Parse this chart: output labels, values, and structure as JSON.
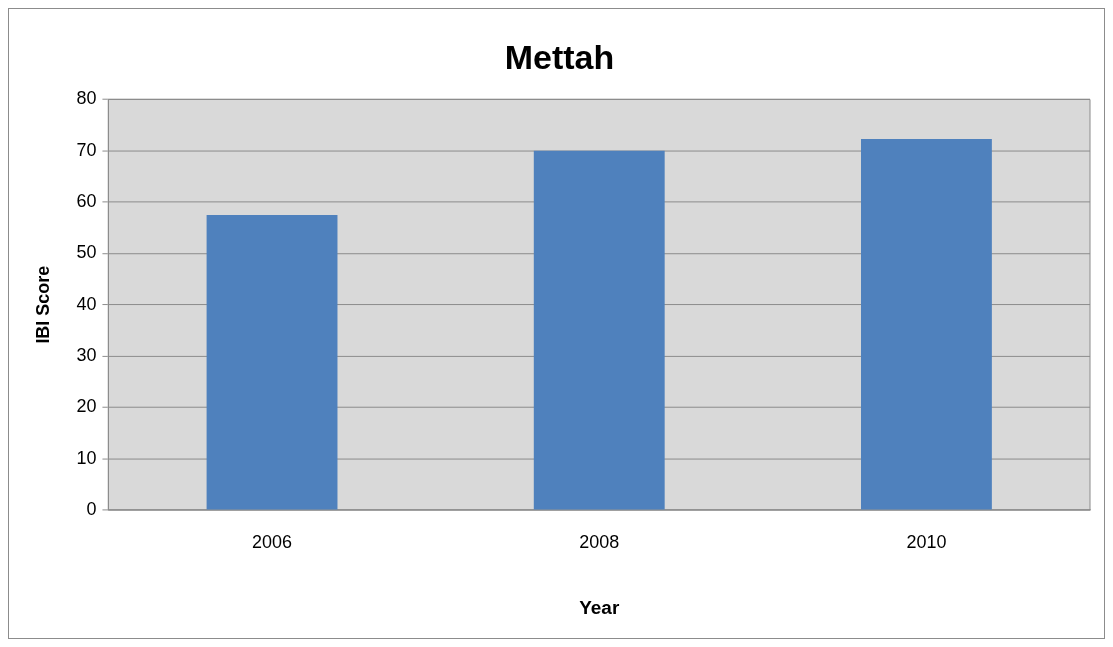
{
  "chart_data": {
    "type": "bar",
    "title": "Mettah",
    "xlabel": "Year",
    "ylabel": "IBI Score",
    "categories": [
      "2006",
      "2008",
      "2010"
    ],
    "series": [
      {
        "color": "#4f81bd",
        "values": [
          57.5,
          70,
          72.3
        ]
      }
    ],
    "ylim": [
      0,
      80
    ],
    "yticks": [
      0,
      10,
      20,
      30,
      40,
      50,
      60,
      70,
      80
    ],
    "grid": "y",
    "legend": false
  }
}
